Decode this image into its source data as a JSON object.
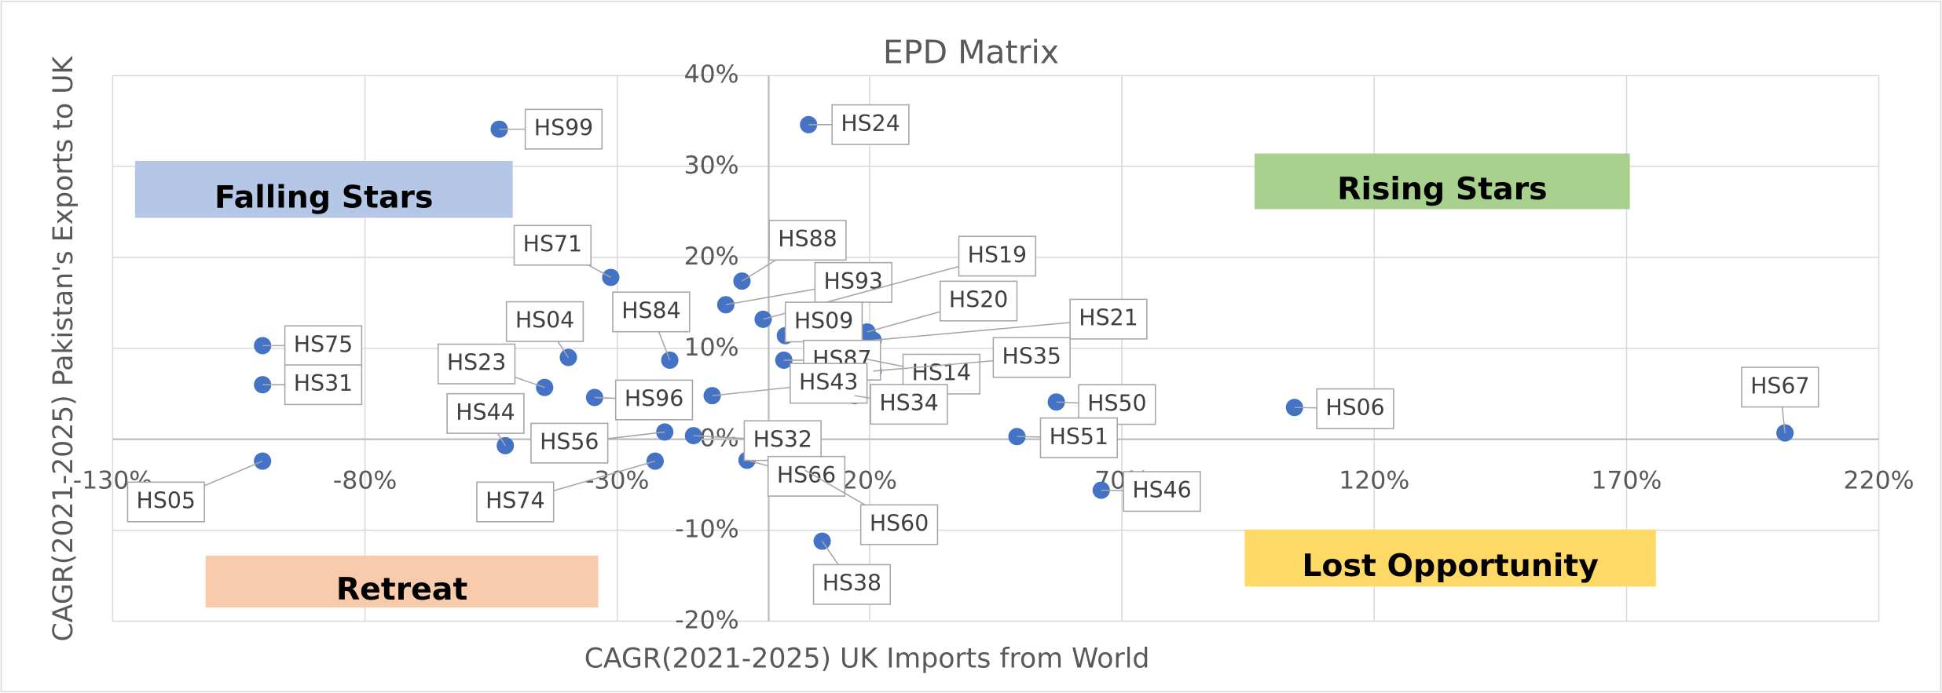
{
  "chart_data": {
    "type": "scatter",
    "title": "EPD Matrix",
    "x_label": "CAGR(2021-2025) UK Imports from World",
    "y_label": "CAGR(2021-2025) Pakistan's Exports to UK",
    "color": "#4472c4",
    "grid": true,
    "categories": [
      "HS99",
      "HS24",
      "HS71",
      "HS88",
      "HS93",
      "HS19",
      "HS09",
      "HS20",
      "HS21",
      "HS87",
      "HS75",
      "HS31",
      "HS05",
      "HS04",
      "HS84",
      "HS23",
      "HS96",
      "HS44",
      "HS56",
      "HS74",
      "HS43",
      "HS14",
      "HS35",
      "HS34",
      "HS32",
      "HS66",
      "HS60",
      "HS38",
      "HS50",
      "HS51",
      "HS06",
      "HS67",
      "HS46"
    ],
    "x": [
      -53.4,
      7.9,
      -31.3,
      -5.3,
      -8.5,
      -1.1,
      3.3,
      19.5,
      20.7,
      3.0,
      -100.3,
      -100.3,
      -100.3,
      -39.7,
      -19.6,
      -44.4,
      -34.5,
      -52.2,
      -20.6,
      -22.5,
      -11.2,
      19.5,
      20.7,
      17.0,
      -14.9,
      -4.3,
      7.2,
      10.6,
      57.0,
      49.2,
      104.2,
      201.4,
      65.9
    ],
    "values": [
      34.1,
      34.6,
      17.8,
      17.4,
      14.8,
      13.2,
      11.4,
      11.8,
      10.9,
      8.7,
      10.3,
      6.0,
      -2.4,
      9.0,
      8.7,
      5.7,
      4.6,
      -0.7,
      0.8,
      -2.4,
      4.8,
      8.8,
      7.5,
      4.8,
      0.4,
      -2.3,
      -3.4,
      -11.2,
      4.1,
      0.3,
      3.5,
      0.7,
      -5.6
    ],
    "xlim": [
      -130,
      220
    ],
    "xticks": [
      {
        "value": -130,
        "label": "-130%"
      },
      {
        "value": -80,
        "label": "-80%"
      },
      {
        "value": -30,
        "label": "-30%"
      },
      {
        "value": 20,
        "label": "20%"
      },
      {
        "value": 70,
        "label": "70%"
      },
      {
        "value": 120,
        "label": "120%"
      },
      {
        "value": 170,
        "label": "170%"
      },
      {
        "value": 220,
        "label": "220%"
      }
    ],
    "ylim": [
      -20,
      40
    ],
    "yticks": [
      {
        "value": -20,
        "label": "-20%"
      },
      {
        "value": -10,
        "label": "-10%"
      },
      {
        "value": 0,
        "label": "0%"
      },
      {
        "value": 10,
        "label": "10%"
      },
      {
        "value": 20,
        "label": "20%"
      },
      {
        "value": 30,
        "label": "30%"
      },
      {
        "value": 40,
        "label": "40%"
      }
    ],
    "quadrants": [
      {
        "label": "Falling Stars",
        "color": "#b4c7e7"
      },
      {
        "label": "Rising Stars",
        "color": "#a9d18e"
      },
      {
        "label": "Retreat",
        "color": "#f8cbad"
      },
      {
        "label": "Lost Opportunity",
        "color": "#ffd966"
      }
    ]
  }
}
